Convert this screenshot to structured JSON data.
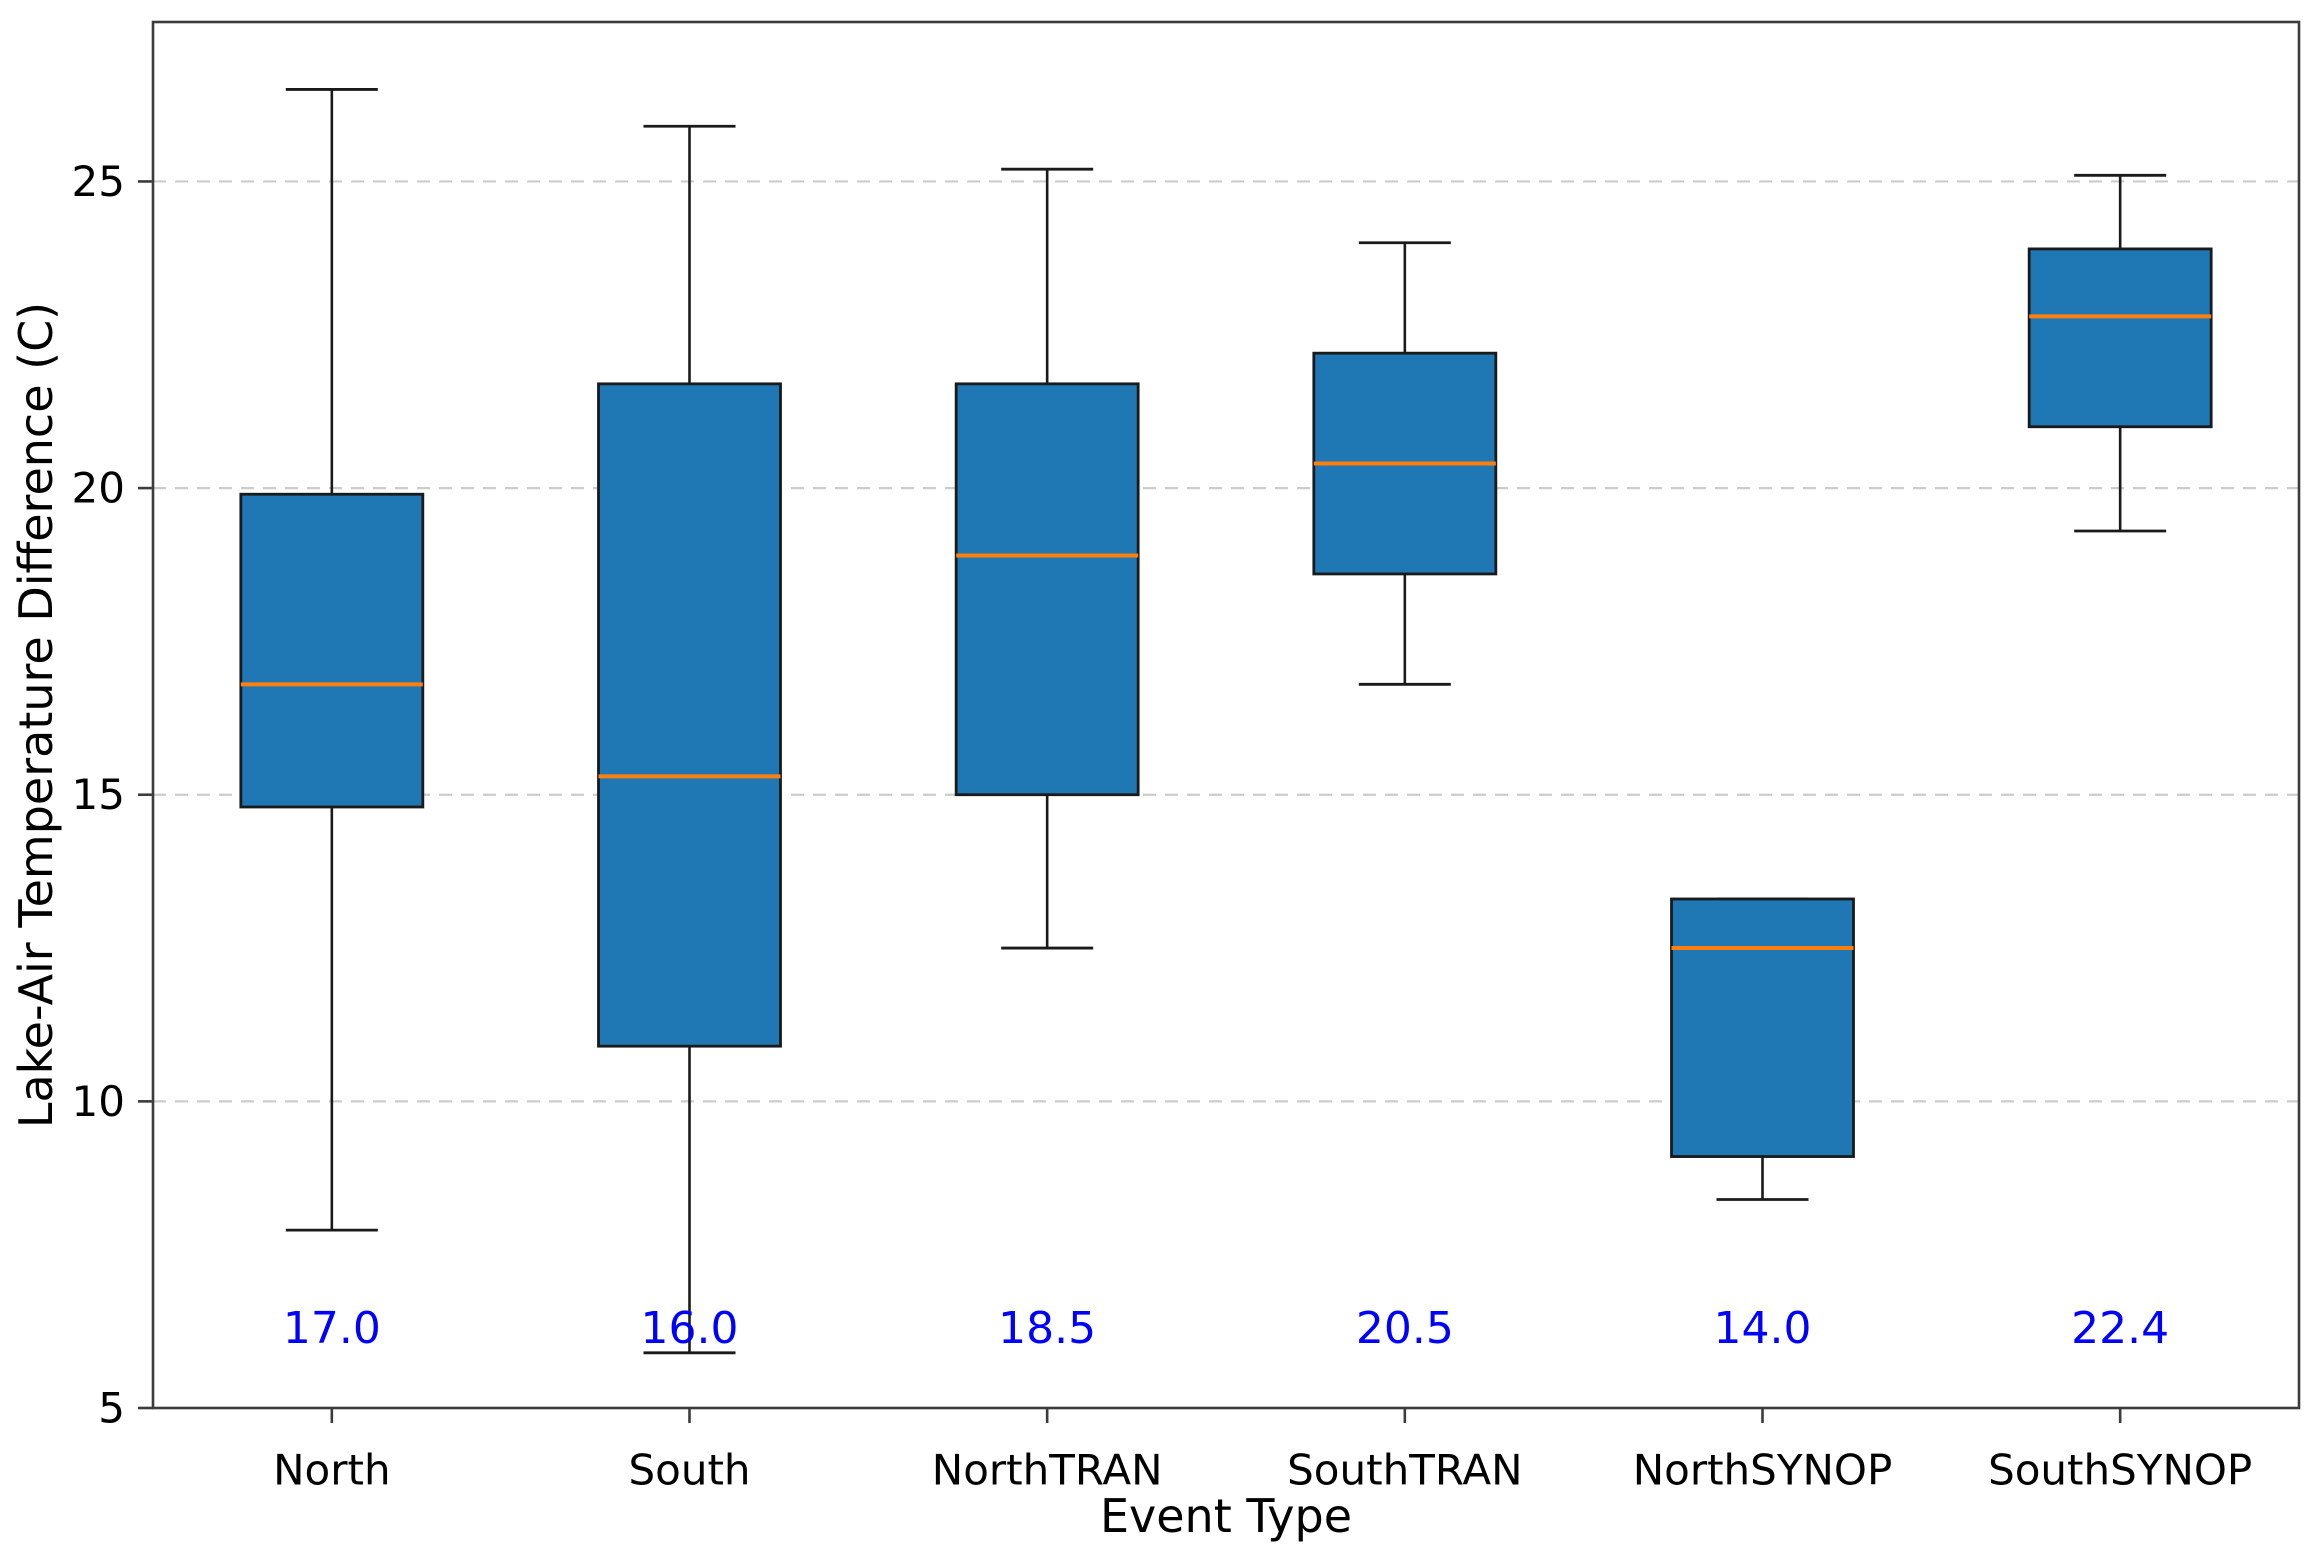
{
  "figure": {
    "background": "#ffffff",
    "xlabel": "Event Type",
    "ylabel": "Lake-Air Temperature Difference (C)"
  },
  "chart_data": {
    "type": "box",
    "title": "",
    "xlabel": "Event Type",
    "ylabel": "Lake-Air Temperature Difference (C)",
    "categories": [
      "North",
      "South",
      "NorthTRAN",
      "SouthTRAN",
      "NorthSYNOP",
      "SouthSYNOP"
    ],
    "series": [
      {
        "name": "North",
        "whislo": 7.9,
        "q1": 14.8,
        "med": 16.8,
        "q3": 19.9,
        "whishi": 26.5,
        "annotation": "17.0"
      },
      {
        "name": "South",
        "whislo": 5.9,
        "q1": 10.9,
        "med": 15.3,
        "q3": 21.7,
        "whishi": 25.9,
        "annotation": "16.0"
      },
      {
        "name": "NorthTRAN",
        "whislo": 12.5,
        "q1": 15.0,
        "med": 18.9,
        "q3": 21.7,
        "whishi": 25.2,
        "annotation": "18.5"
      },
      {
        "name": "SouthTRAN",
        "whislo": 16.8,
        "q1": 18.6,
        "med": 20.4,
        "q3": 22.2,
        "whishi": 24.0,
        "annotation": "20.5"
      },
      {
        "name": "NorthSYNOP",
        "whislo": 8.4,
        "q1": 9.1,
        "med": 12.5,
        "q3": 13.3,
        "whishi": 13.3,
        "annotation": "14.0"
      },
      {
        "name": "SouthSYNOP",
        "whislo": 19.3,
        "q1": 21.0,
        "med": 22.8,
        "q3": 23.9,
        "whishi": 25.1,
        "annotation": "22.4"
      }
    ],
    "yticks": [
      5,
      10,
      15,
      20,
      25
    ],
    "ylim": [
      5,
      27.6
    ],
    "annotation_y": 6.3,
    "grid": "horizontal-dashed",
    "legend": "none",
    "colors": {
      "box_fill": "#1f77b4",
      "box_edge": "#1a1a1a",
      "median": "#ff7f0e",
      "whisker": "#1a1a1a",
      "annotation_text": "#0000ff",
      "grid_line": "#cccccc",
      "spine": "#3c3c3c",
      "tick_text": "#000000"
    }
  }
}
